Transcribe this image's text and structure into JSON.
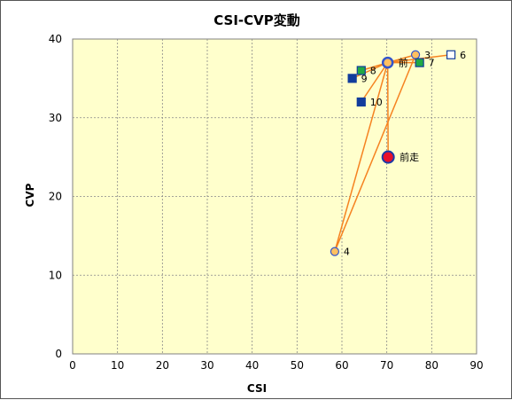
{
  "chart_data": {
    "type": "scatter",
    "title": "CSI-CVP変動",
    "xlabel": "CSI",
    "ylabel": "CVP",
    "xlim": [
      0,
      90
    ],
    "ylim": [
      0,
      40
    ],
    "x_ticks": [
      "0",
      "10",
      "20",
      "30",
      "40",
      "50",
      "60",
      "70",
      "80",
      "90"
    ],
    "y_ticks": [
      "0",
      "10",
      "20",
      "30",
      "40"
    ],
    "grid": true,
    "legend": "none",
    "colors": {
      "plot_bg": "#ffffcc",
      "grid": "#888888",
      "line": "#f58220",
      "circle_fill": "#ffc060",
      "circle_stroke": "#3355cc",
      "square_blue": "#123c9c",
      "square_green": "#22aa44",
      "square_open": "#ffffff",
      "current_fill": "#e8102a",
      "current_stroke": "#1a3aa8"
    },
    "points": [
      {
        "label": "前走",
        "x": 70.3,
        "y": 25.0,
        "marker": "current"
      },
      {
        "label": "前",
        "x": 70.2,
        "y": 37.0,
        "marker": "circle-large"
      },
      {
        "label": "3",
        "x": 76.4,
        "y": 38.0,
        "marker": "circle"
      },
      {
        "label": "4",
        "x": 58.4,
        "y": 13.0,
        "marker": "circle"
      },
      {
        "label": "6",
        "x": 84.3,
        "y": 38.0,
        "marker": "square-open"
      },
      {
        "label": "7",
        "x": 77.3,
        "y": 37.0,
        "marker": "square-green"
      },
      {
        "label": "8",
        "x": 64.3,
        "y": 36.0,
        "marker": "square-green"
      },
      {
        "label": "9",
        "x": 62.3,
        "y": 35.0,
        "marker": "square-blue"
      },
      {
        "label": "10",
        "x": 64.3,
        "y": 32.0,
        "marker": "square-blue"
      }
    ],
    "connections": [
      [
        70.3,
        25.0,
        70.2,
        37.0
      ],
      [
        70.2,
        37.0,
        76.4,
        38.0
      ],
      [
        70.2,
        37.0,
        58.4,
        13.0
      ],
      [
        58.4,
        13.0,
        76.4,
        38.0
      ],
      [
        70.2,
        37.0,
        84.3,
        38.0
      ],
      [
        70.2,
        37.0,
        77.3,
        37.0
      ],
      [
        70.2,
        37.0,
        64.3,
        36.0
      ],
      [
        70.2,
        37.0,
        62.3,
        35.0
      ],
      [
        70.2,
        37.0,
        64.3,
        32.0
      ]
    ]
  }
}
